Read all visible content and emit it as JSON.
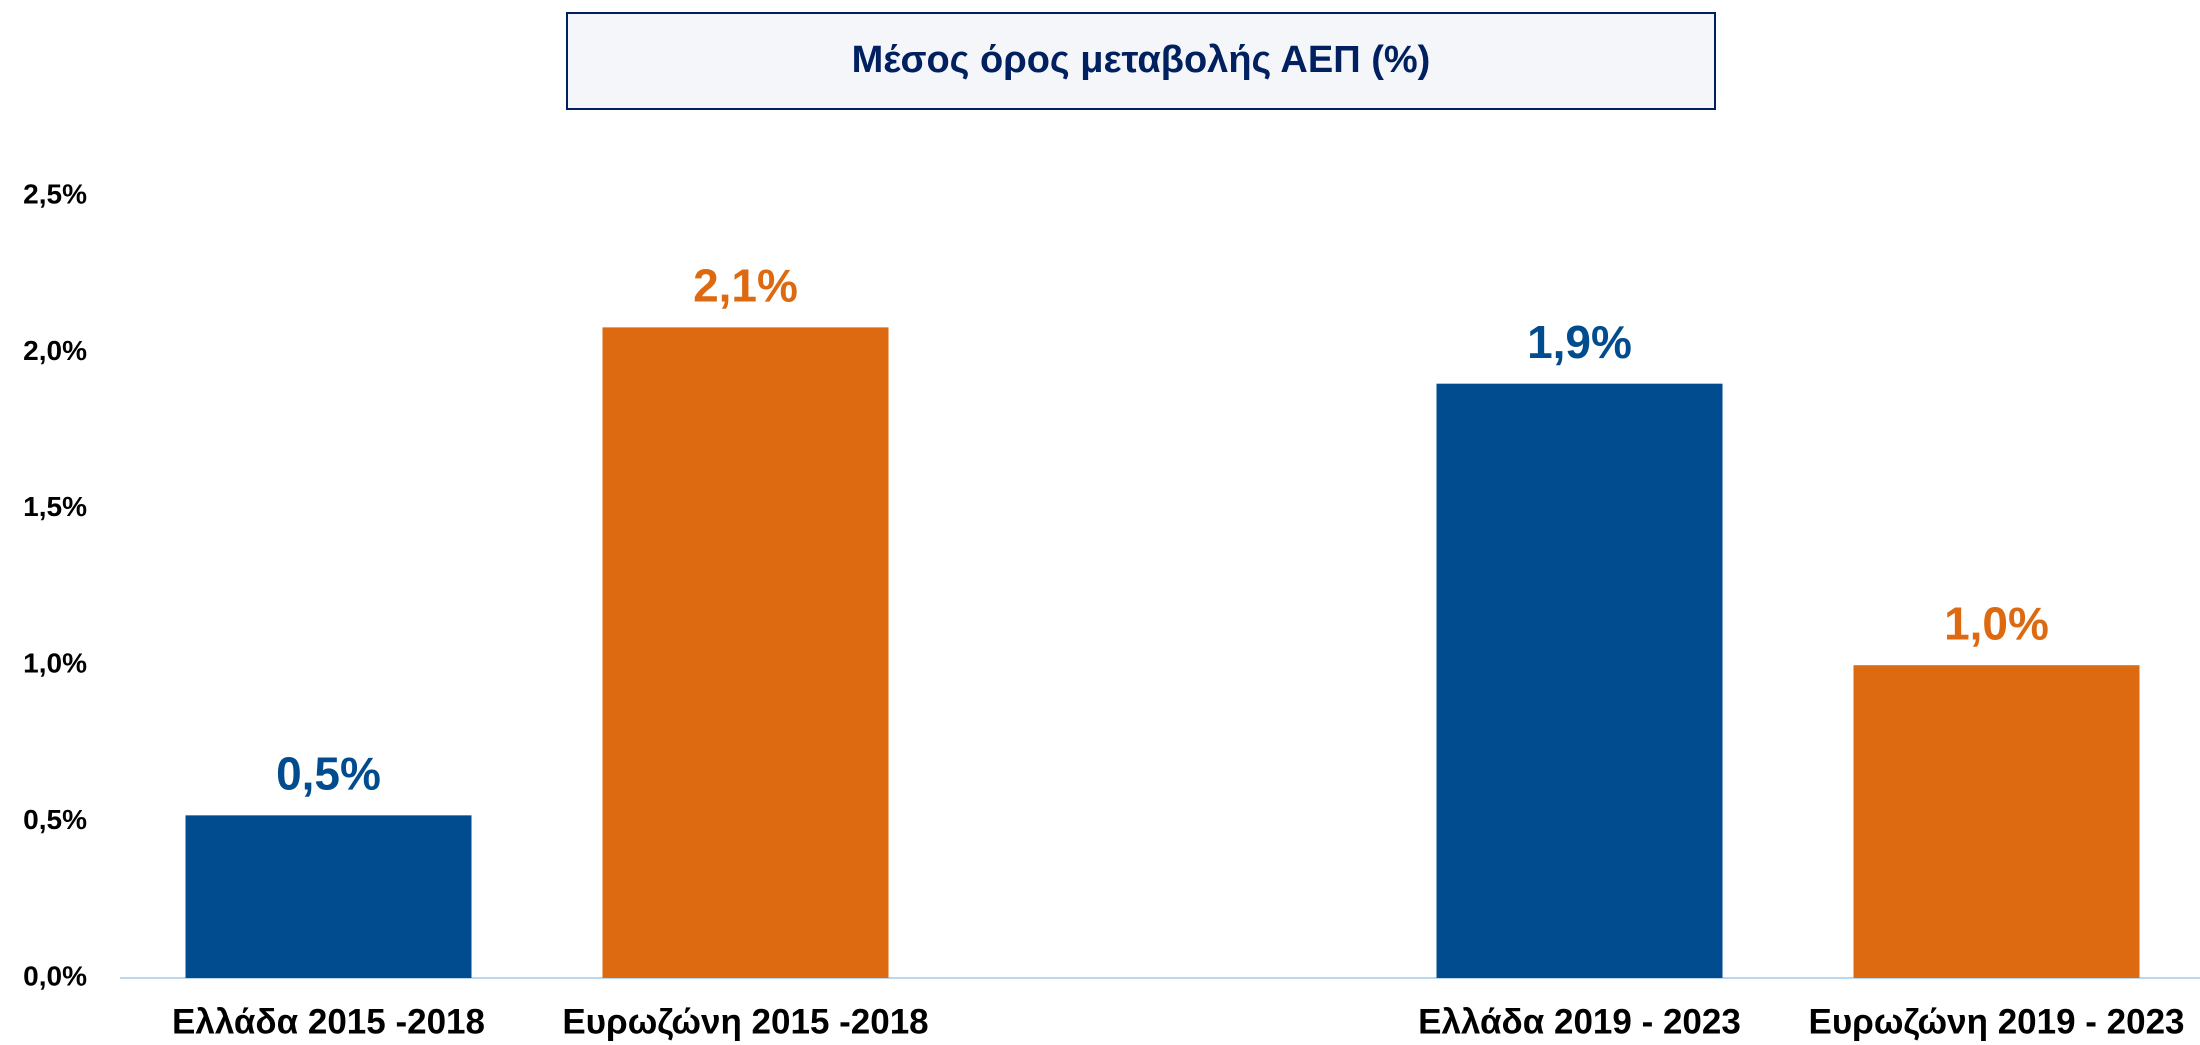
{
  "chart_data": {
    "type": "bar",
    "title": "Μέσος όρος μεταβολής ΑΕΠ (%)",
    "categories": [
      "Ελλάδα 2015 -2018",
      "Ευρωζώνη 2015 -2018",
      null,
      "Ελλάδα 2019 - 2023",
      "Ευρωζώνη 2019 - 2023"
    ],
    "values": [
      0.52,
      2.08,
      null,
      1.9,
      1.0
    ],
    "value_labels": [
      "0,5%",
      "2,1%",
      null,
      "1,9%",
      "1,0%"
    ],
    "colors": [
      "#004c8f",
      "#dd6a10",
      null,
      "#004c8f",
      "#dd6a10"
    ],
    "ylim": [
      0,
      2.5
    ],
    "yticks": [
      {
        "value": 0,
        "label": "0,0%"
      },
      {
        "value": 0.5,
        "label": "0,5%"
      },
      {
        "value": 1.0,
        "label": "1,0%"
      },
      {
        "value": 1.5,
        "label": "1,5%"
      },
      {
        "value": 2.0,
        "label": "2,0%"
      },
      {
        "value": 2.5,
        "label": "2,5%"
      }
    ],
    "grid": false
  }
}
